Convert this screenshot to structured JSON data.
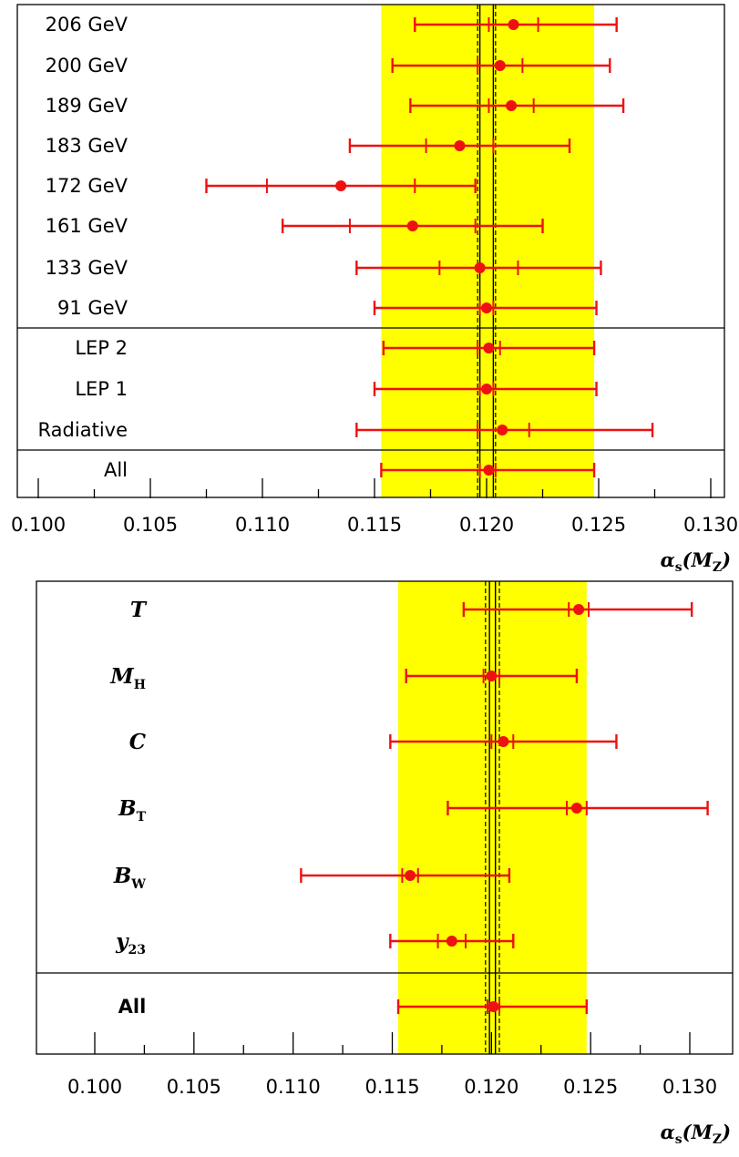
{
  "chart_data": [
    {
      "type": "scatter",
      "subtype": "horizontal-errorbar",
      "xlabel": "αs(MZ)",
      "xlim": [
        0.1,
        0.13
      ],
      "xticks": [
        "0.100",
        "0.105",
        "0.110",
        "0.115",
        "0.120",
        "0.125",
        "0.130"
      ],
      "band": [
        0.1153,
        0.1248
      ],
      "central_solid": [
        0.1197,
        0.1203
      ],
      "central_dashed": [
        0.1196,
        0.1204
      ],
      "rows": [
        {
          "label": "206 GeV",
          "value": 0.1212,
          "stat": [
            0.1201,
            0.1223
          ],
          "total": [
            0.1168,
            0.1258
          ]
        },
        {
          "label": "200 GeV",
          "value": 0.1206,
          "stat": [
            0.1196,
            0.1216
          ],
          "total": [
            0.1158,
            0.1255
          ]
        },
        {
          "label": "189 GeV",
          "value": 0.1211,
          "stat": [
            0.1201,
            0.1221
          ],
          "total": [
            0.1166,
            0.1261
          ]
        },
        {
          "label": "183 GeV",
          "value": 0.1188,
          "stat": [
            0.1173,
            0.1203
          ],
          "total": [
            0.1139,
            0.1237
          ]
        },
        {
          "label": "172 GeV",
          "value": 0.1135,
          "stat": [
            0.1102,
            0.1168
          ],
          "total": [
            0.1075,
            0.1195
          ]
        },
        {
          "label": "161 GeV",
          "value": 0.1167,
          "stat": [
            0.1139,
            0.1195
          ],
          "total": [
            0.1109,
            0.1225
          ]
        },
        {
          "label": "133 GeV",
          "value": 0.1197,
          "stat": [
            0.1179,
            0.1214
          ],
          "total": [
            0.1142,
            0.1251
          ]
        },
        {
          "label": "91 GeV",
          "value": 0.12,
          "stat": [
            0.1197,
            0.1203
          ],
          "total": [
            0.115,
            0.1249
          ]
        },
        {
          "label": "LEP 2",
          "value": 0.1201,
          "stat": [
            0.1196,
            0.1206
          ],
          "total": [
            0.1154,
            0.1248
          ]
        },
        {
          "label": "LEP 1",
          "value": 0.12,
          "stat": [
            0.1197,
            0.1203
          ],
          "total": [
            0.115,
            0.1249
          ]
        },
        {
          "label": "Radiative",
          "value": 0.1207,
          "stat": [
            0.1196,
            0.1219
          ],
          "total": [
            0.1142,
            0.1274
          ]
        },
        {
          "label": "All",
          "value": 0.1201,
          "stat": [
            0.1197,
            0.1204
          ],
          "total": [
            0.1153,
            0.1248
          ]
        }
      ]
    },
    {
      "type": "scatter",
      "subtype": "horizontal-errorbar",
      "xlabel": "αs(MZ)",
      "xlim": [
        0.1,
        0.13
      ],
      "xticks": [
        "0.100",
        "0.105",
        "0.110",
        "0.115",
        "0.120",
        "0.125",
        "0.130"
      ],
      "band": [
        0.1153,
        0.1248
      ],
      "central_solid": [
        0.1199,
        0.1202
      ],
      "central_dashed": [
        0.1197,
        0.1204
      ],
      "rows": [
        {
          "label": "T",
          "value": 0.1244,
          "stat": [
            0.1239,
            0.1249
          ],
          "total": [
            0.1186,
            0.1301
          ]
        },
        {
          "label": "MH",
          "value": 0.12,
          "stat": [
            0.1196,
            0.1204
          ],
          "total": [
            0.1157,
            0.1243
          ]
        },
        {
          "label": "C",
          "value": 0.1206,
          "stat": [
            0.12,
            0.1211
          ],
          "total": [
            0.1149,
            0.1263
          ]
        },
        {
          "label": "BT",
          "value": 0.1243,
          "stat": [
            0.1238,
            0.1248
          ],
          "total": [
            0.1178,
            0.1309
          ]
        },
        {
          "label": "BW",
          "value": 0.1159,
          "stat": [
            0.1155,
            0.1163
          ],
          "total": [
            0.1104,
            0.1209
          ]
        },
        {
          "label": "y23",
          "value": 0.118,
          "stat": [
            0.1173,
            0.1187
          ],
          "total": [
            0.1149,
            0.1211
          ]
        },
        {
          "label": "All",
          "value": 0.1201,
          "stat": [
            0.1198,
            0.1204
          ],
          "total": [
            0.1153,
            0.1248
          ]
        }
      ]
    }
  ]
}
